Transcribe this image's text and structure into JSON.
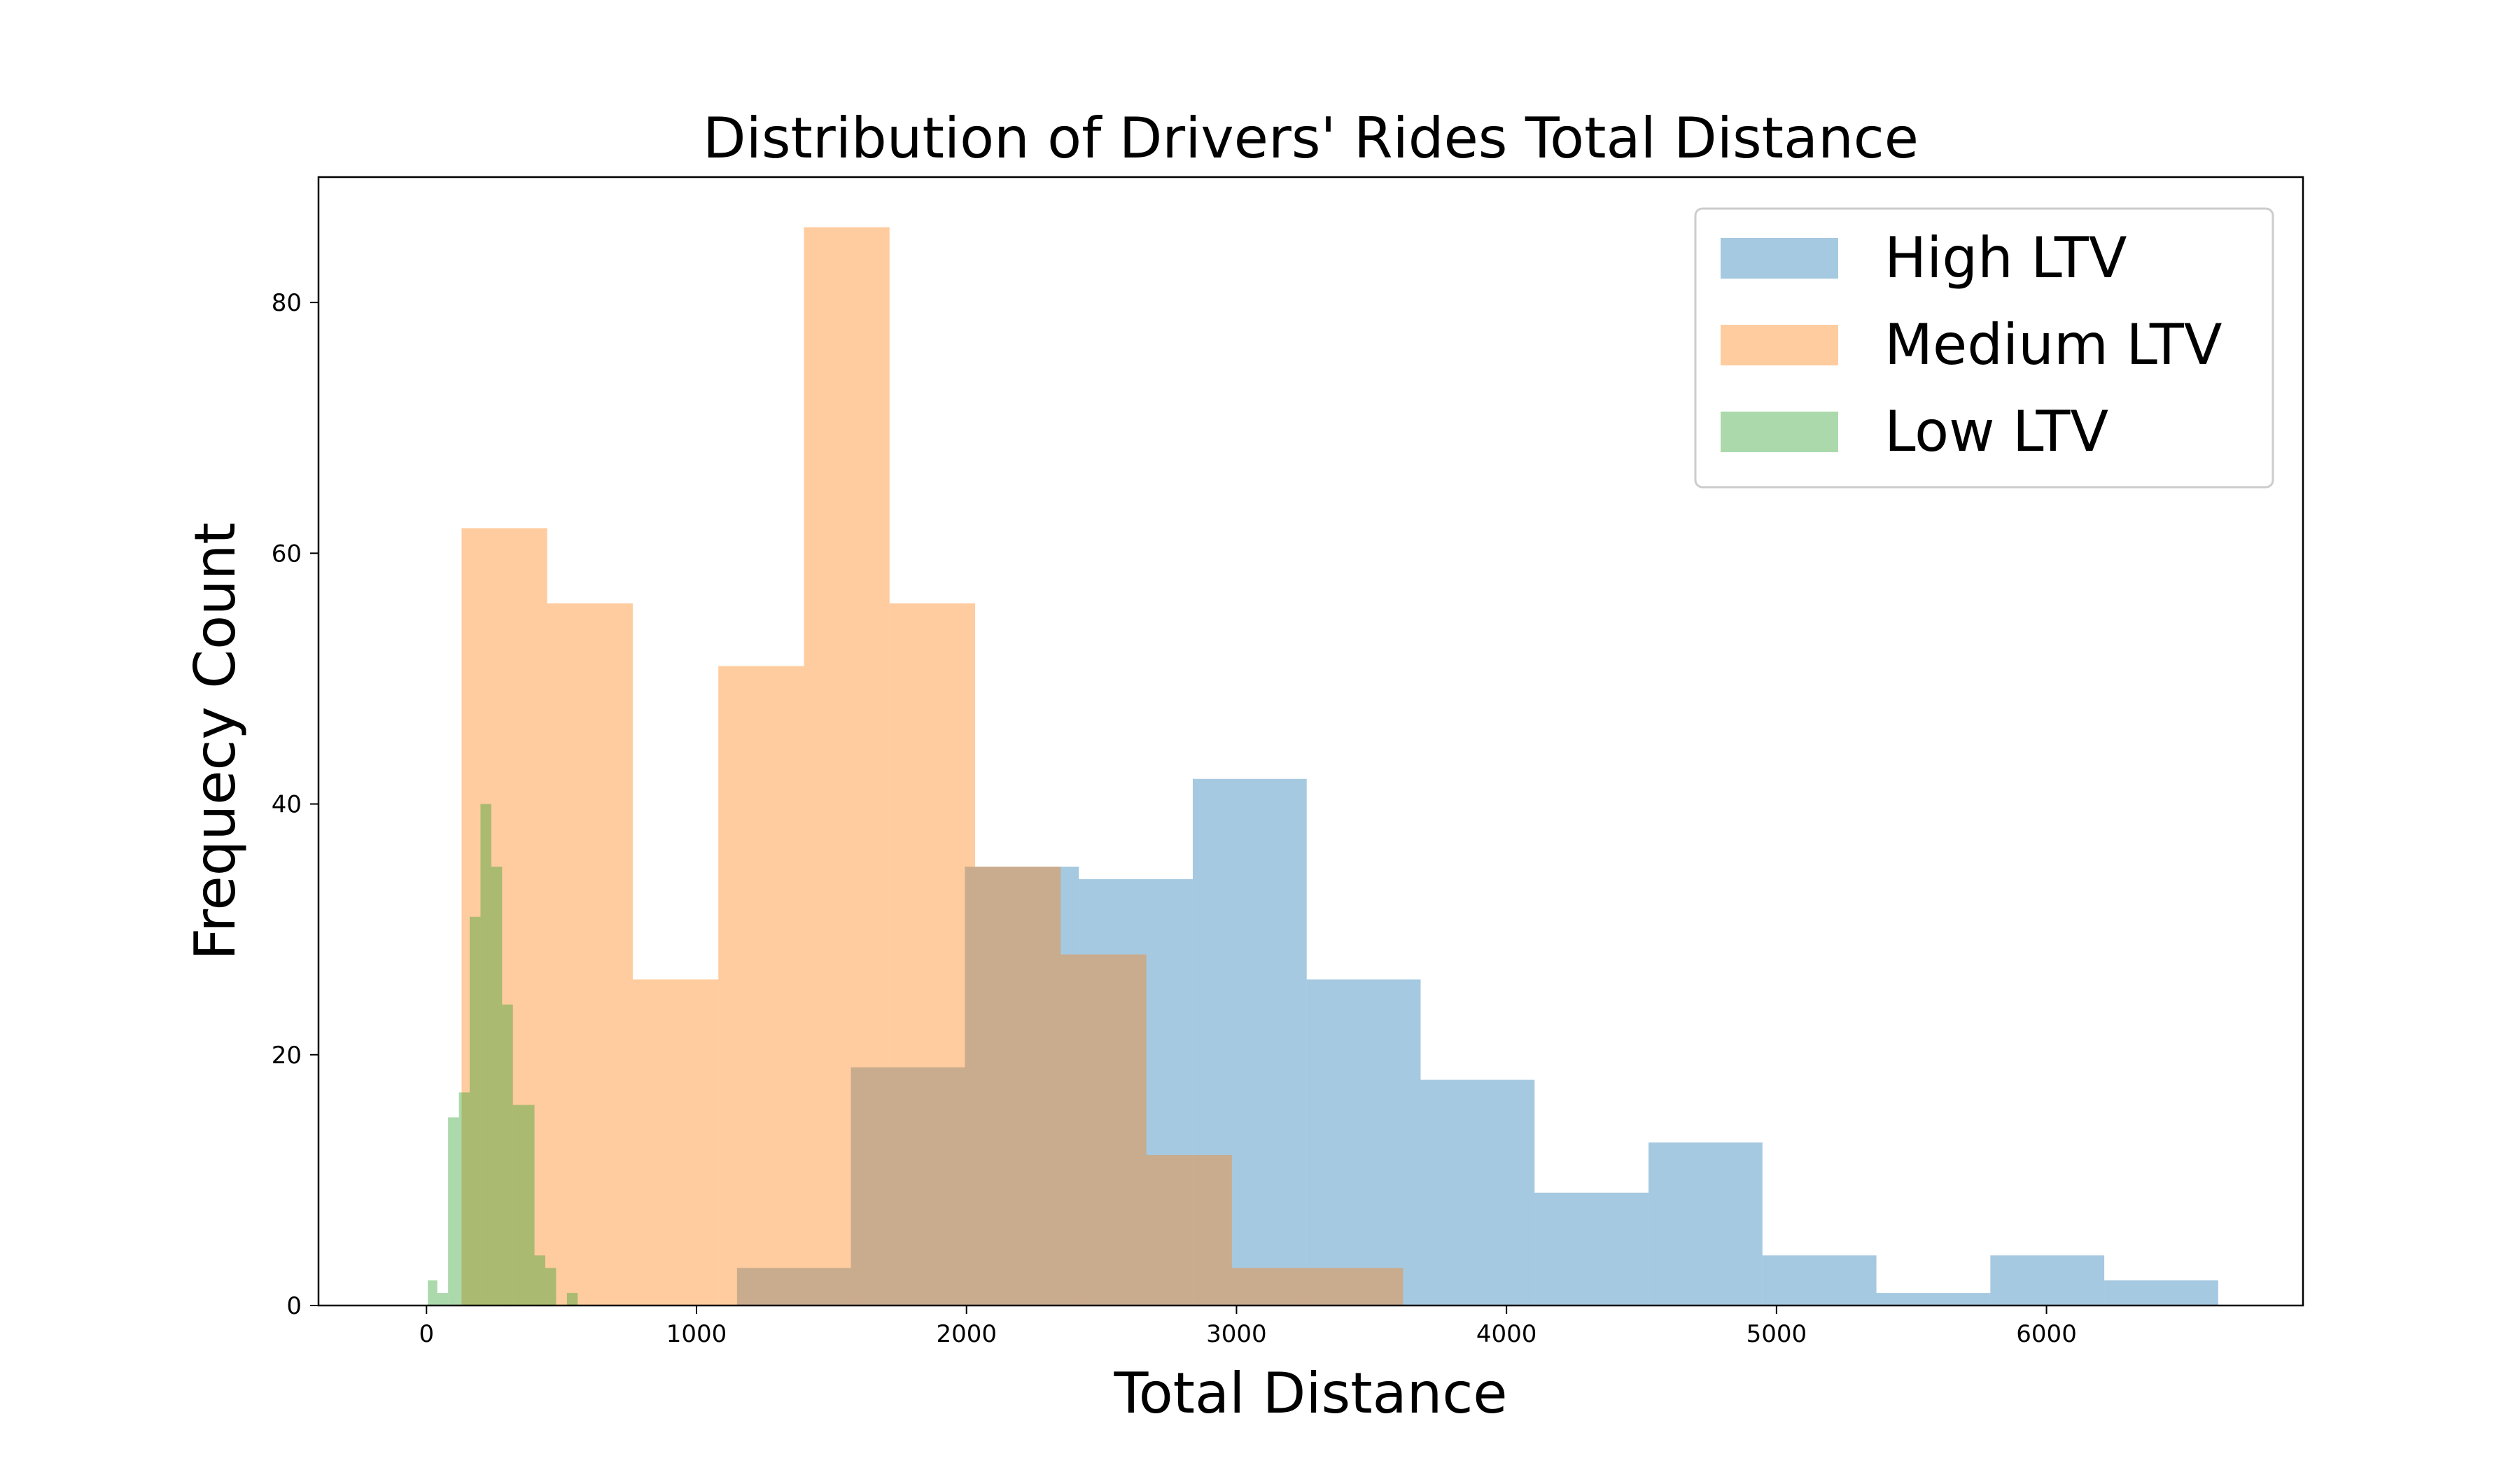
{
  "chart_data": {
    "type": "bar",
    "title": "Distribution of Drivers' Rides Total Distance",
    "xlabel": "Total Distance",
    "ylabel": "Frequecy Count",
    "xlim": [
      -400,
      6950
    ],
    "ylim": [
      0,
      90
    ],
    "xticks": [
      0,
      1000,
      2000,
      3000,
      4000,
      5000,
      6000
    ],
    "yticks": [
      0,
      20,
      40,
      60,
      80
    ],
    "grid": false,
    "legend_position": "top-right",
    "bar_opacity": 0.4,
    "series": [
      {
        "name": "High LTV",
        "color": "#1f77b4",
        "bin_edges": [
          1150,
          1572,
          1994,
          2416,
          2838,
          3260,
          3682,
          4104,
          4526,
          4948,
          5370,
          5792,
          6214,
          6636
        ],
        "counts": [
          3,
          19,
          35,
          34,
          42,
          26,
          18,
          9,
          13,
          4,
          1,
          4,
          2
        ]
      },
      {
        "name": "Medium LTV",
        "color": "#ff7f0e",
        "bin_edges": [
          130,
          447,
          764,
          1081,
          1398,
          1715,
          2032,
          2349,
          2666,
          2983,
          3300,
          3617
        ],
        "counts": [
          62,
          56,
          26,
          51,
          86,
          56,
          35,
          28,
          12,
          3,
          3
        ]
      },
      {
        "name": "Low LTV",
        "color": "#2ca02c",
        "bin_edges": [
          5,
          40,
          80,
          120,
          160,
          200,
          240,
          280,
          320,
          360,
          400,
          440,
          480,
          520,
          560,
          600
        ],
        "counts": [
          2,
          1,
          15,
          17,
          31,
          40,
          35,
          24,
          16,
          16,
          4,
          3,
          0,
          1,
          0
        ]
      }
    ]
  }
}
